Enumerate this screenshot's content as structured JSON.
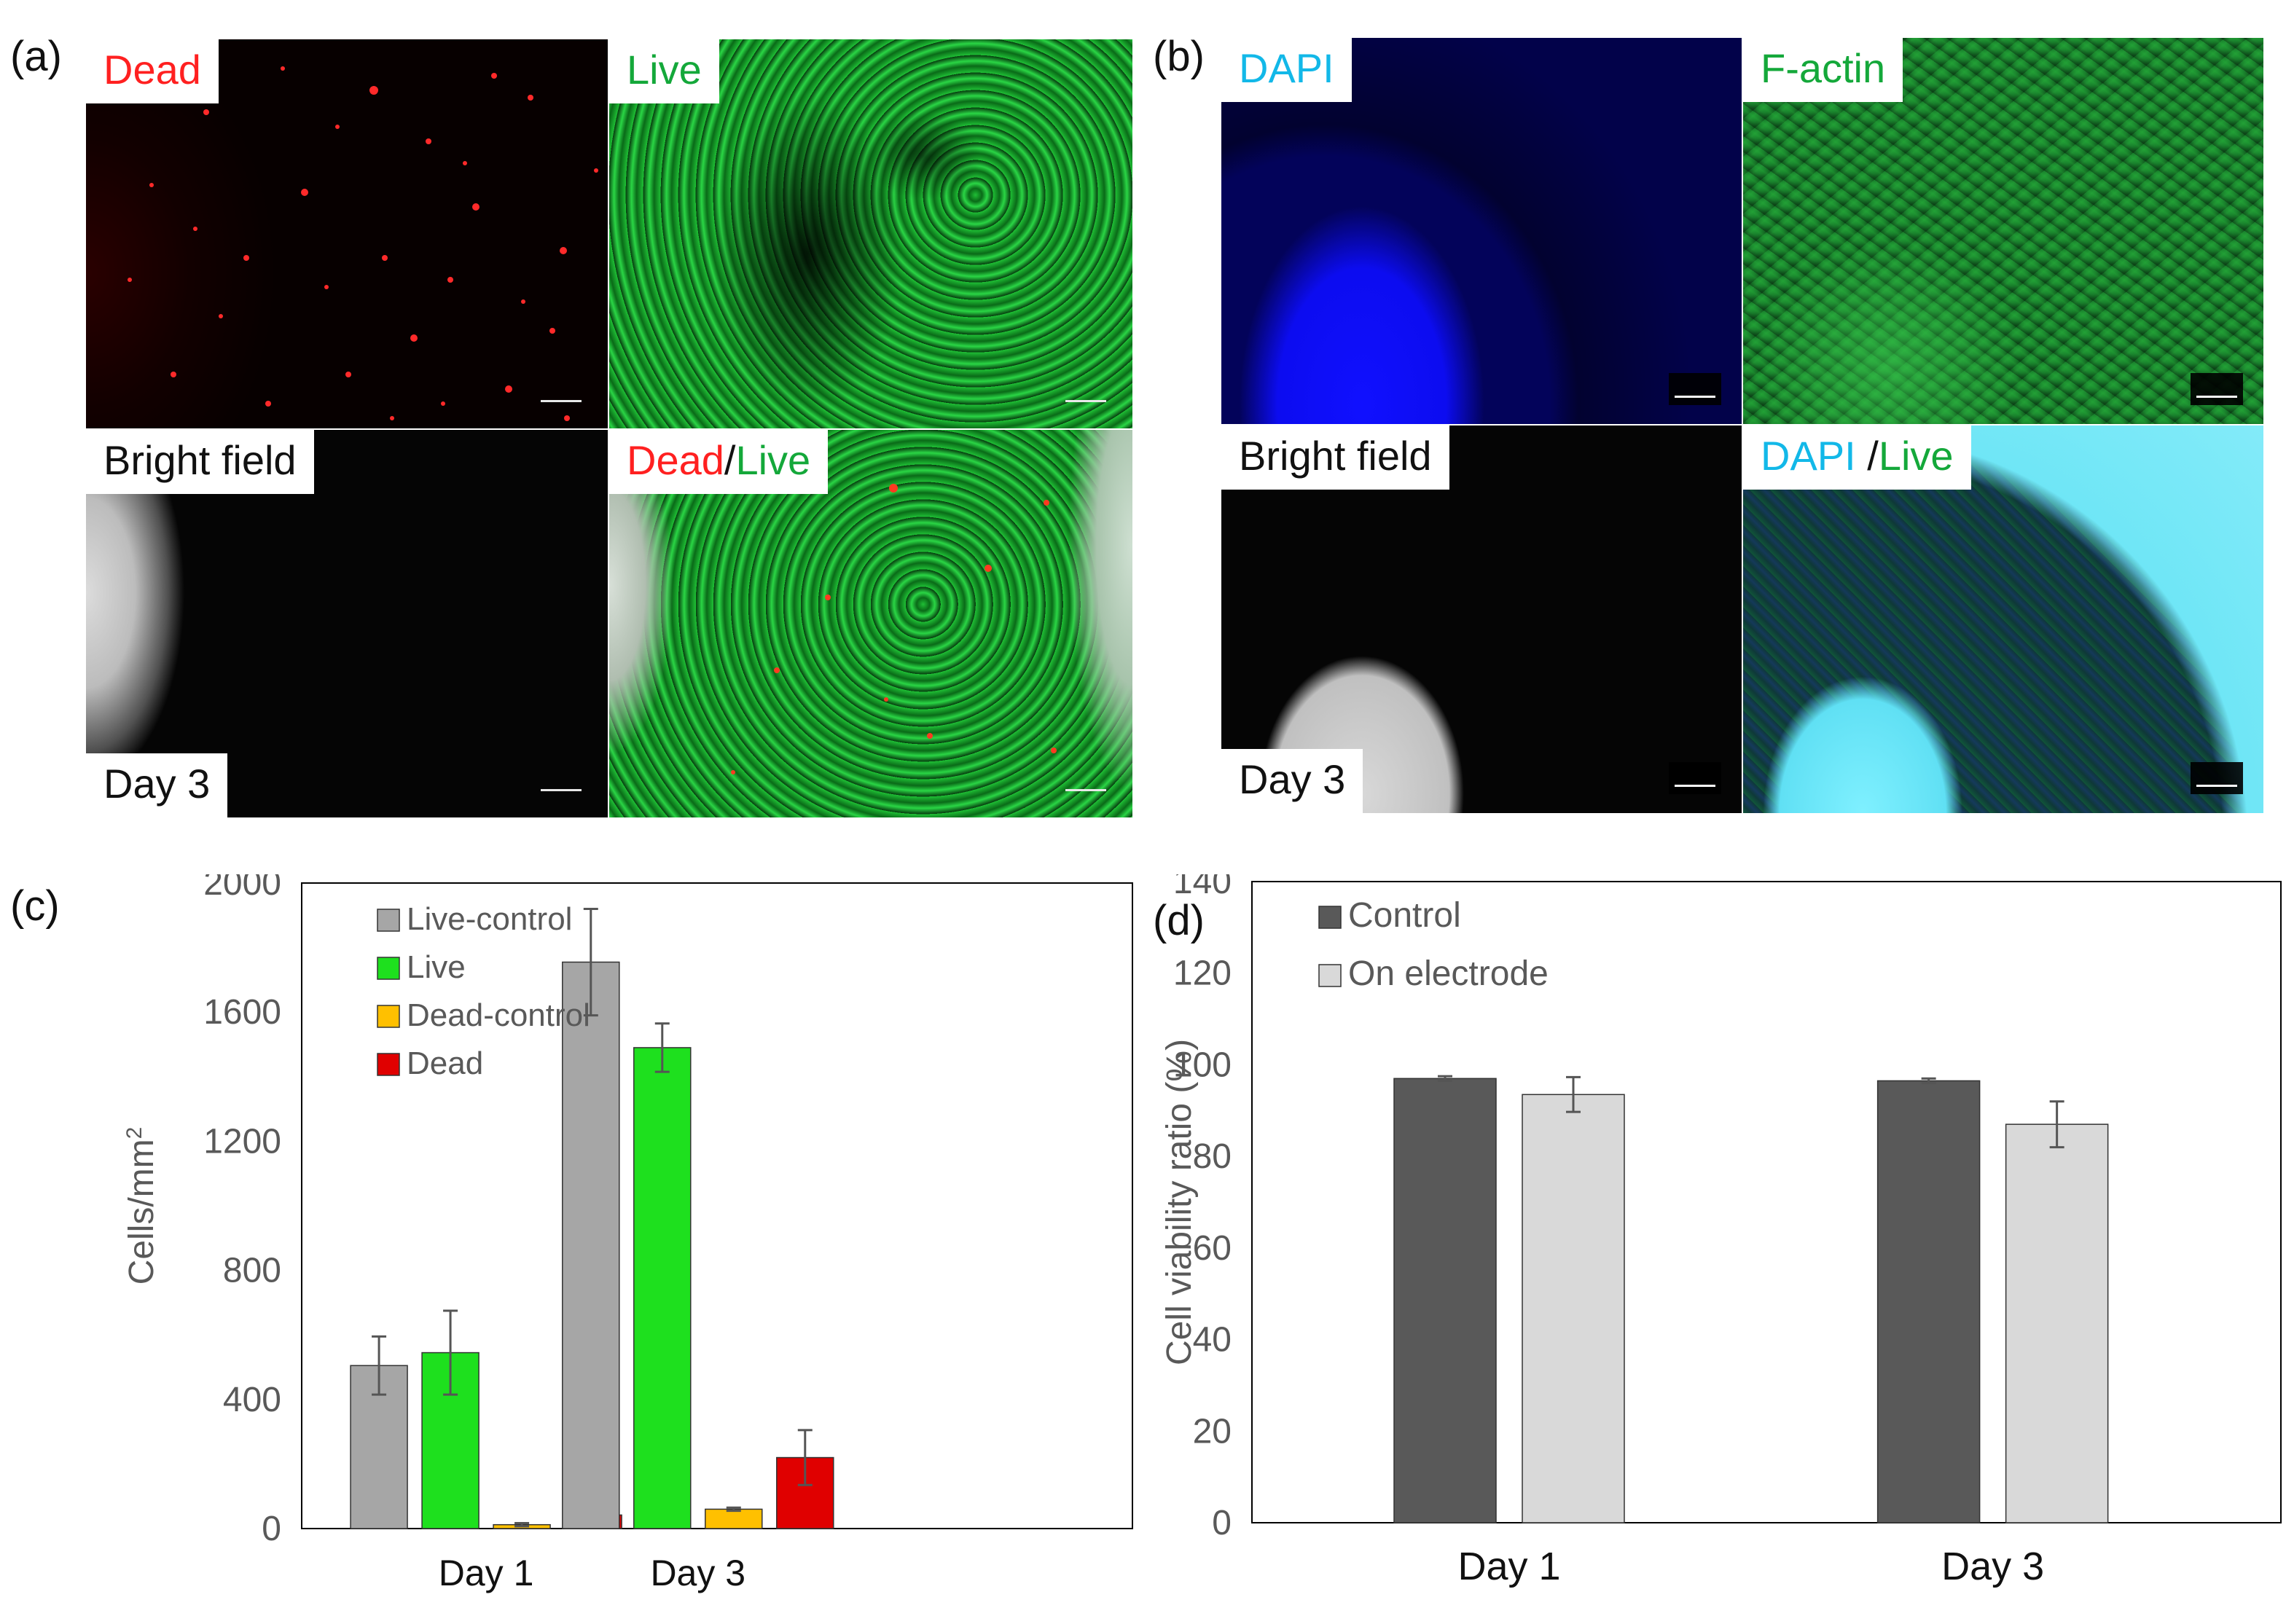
{
  "panels": {
    "a": {
      "letter": "(a)",
      "dead_label": "Dead",
      "live_label": "Live",
      "bright_label": "Bright field",
      "day_label": "Day 3",
      "merge_dead": "Dead",
      "merge_slash": "/",
      "merge_live": "Live"
    },
    "b": {
      "letter": "(b)",
      "dapi_label": "DAPI",
      "factin_label": "F-actin",
      "bright_label": "Bright field",
      "day_label": "Day 3",
      "merge_dapi": "DAPI ",
      "merge_slash": "/",
      "merge_live": "Live"
    },
    "c": {
      "letter": "(c)"
    },
    "d": {
      "letter": "(d)"
    }
  },
  "colors": {
    "dead": "#ff2020",
    "live": "#14a83a",
    "dapi": "#12b8e8"
  },
  "chart_data": [
    {
      "id": "c",
      "type": "bar",
      "categories": [
        "Day 1",
        "Day 3"
      ],
      "ylabel": "Cells/mm",
      "ylabel_superscript": "2",
      "ylim": [
        0,
        2000
      ],
      "yticks": [
        0,
        400,
        800,
        1200,
        1600,
        2000
      ],
      "legend_position": "top-left",
      "series": [
        {
          "name": "Live-control",
          "color": "#a6a6a6",
          "values": [
            505,
            1755
          ],
          "errors": [
            90,
            165
          ]
        },
        {
          "name": "Live",
          "color": "#1ee01e",
          "values": [
            545,
            1490
          ],
          "errors": [
            130,
            75
          ]
        },
        {
          "name": "Dead-control",
          "color": "#ffc000",
          "values": [
            12,
            60
          ],
          "errors": [
            5,
            5
          ]
        },
        {
          "name": "Dead",
          "color": "#e00000",
          "values": [
            42,
            220
          ],
          "errors": [
            25,
            85
          ]
        }
      ]
    },
    {
      "id": "d",
      "type": "bar",
      "categories": [
        "Day 1",
        "Day 3"
      ],
      "ylabel": "Cell viability ratio  (%)",
      "ylim": [
        0,
        140
      ],
      "yticks": [
        0,
        20,
        40,
        60,
        80,
        100,
        120,
        140
      ],
      "legend_position": "top-left",
      "series": [
        {
          "name": "Control",
          "color": "#595959",
          "values": [
            97,
            96.5
          ],
          "errors": [
            0.5,
            0.5
          ]
        },
        {
          "name": "On electrode",
          "color": "#d9d9d9",
          "values": [
            93.5,
            87
          ],
          "errors": [
            3.8,
            5
          ]
        }
      ]
    }
  ]
}
